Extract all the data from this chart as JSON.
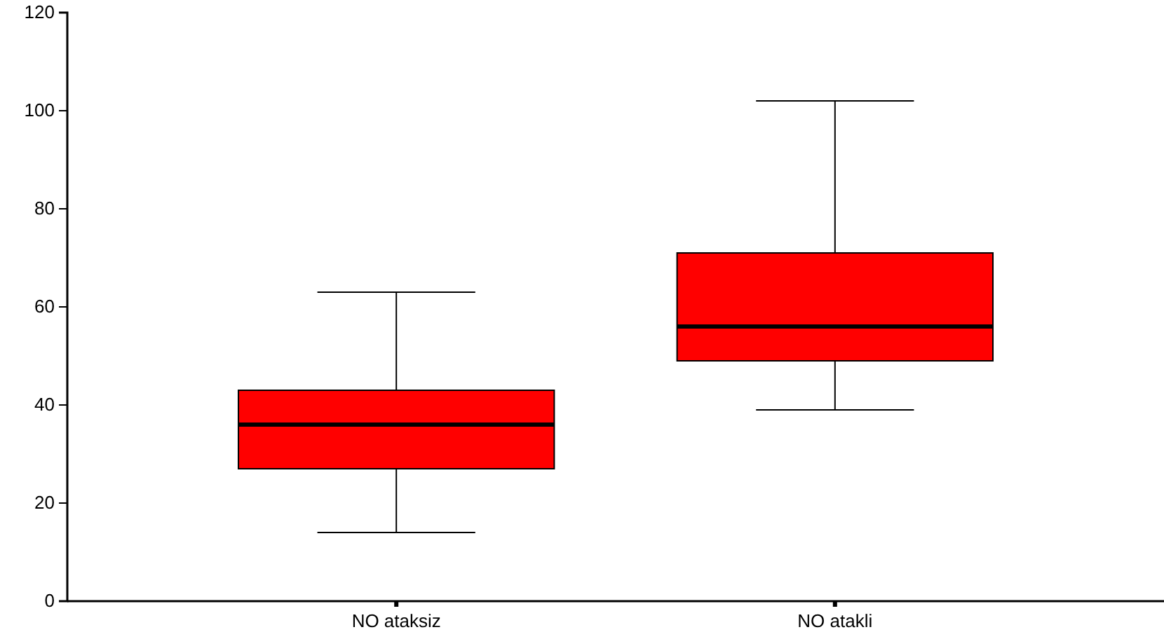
{
  "chart_data": {
    "type": "box",
    "categories": [
      "NO ataksiz",
      "NO atakli"
    ],
    "boxes": [
      {
        "low": 14,
        "q1": 27,
        "median": 36,
        "q3": 43,
        "high": 63
      },
      {
        "low": 39,
        "q1": 49,
        "median": 56,
        "q3": 71,
        "high": 102
      }
    ],
    "color": "#ff0000",
    "ylim": [
      0,
      120
    ],
    "yticks": [
      0,
      20,
      40,
      60,
      80,
      100,
      120
    ],
    "grid": false
  }
}
